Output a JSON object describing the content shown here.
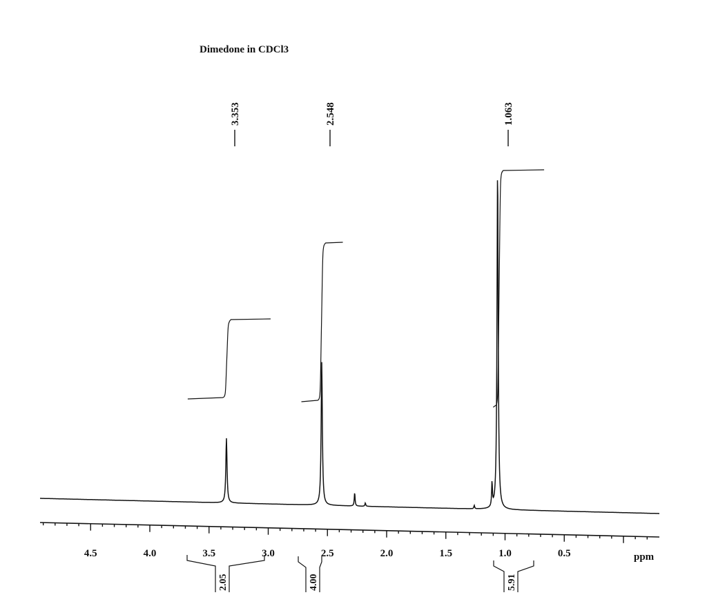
{
  "chart_data": {
    "type": "line",
    "title": "Dimedone in CDCl3",
    "xlabel": "ppm",
    "ylabel": "",
    "x_reversed": true,
    "xlim": [
      4.95,
      -0.3
    ],
    "x_ticks": [
      4.5,
      4.0,
      3.5,
      3.0,
      2.5,
      2.0,
      1.5,
      1.0,
      0.5
    ],
    "x_tick_labels": [
      "4.5",
      "4.0",
      "3.5",
      "3.0",
      "2.5",
      "2.0",
      "1.5",
      "1.0",
      "0.5"
    ],
    "grid": false,
    "legend": null,
    "peaks": [
      {
        "shift_ppm": 3.353,
        "label": "3.353",
        "relative_height": 0.19,
        "integral": "2.05",
        "integral_range_ppm": [
          3.68,
          2.98
        ]
      },
      {
        "shift_ppm": 2.548,
        "label": "2.548",
        "relative_height": 0.42,
        "integral": "4.00",
        "integral_range_ppm": [
          2.72,
          2.37
        ]
      },
      {
        "shift_ppm": 1.063,
        "label": "1.063",
        "relative_height": 1.0,
        "integral": "5.91",
        "integral_range_ppm": [
          1.1,
          0.67
        ]
      }
    ],
    "minor_peaks": [
      {
        "shift_ppm": 2.27,
        "relative_height": 0.04
      },
      {
        "shift_ppm": 2.18,
        "relative_height": 0.01
      },
      {
        "shift_ppm": 1.26,
        "relative_height": 0.01
      },
      {
        "shift_ppm": 1.11,
        "relative_height": 0.07
      }
    ],
    "integration_curves": [
      {
        "range_ppm": [
          3.68,
          2.98
        ],
        "step_at_ppm": 3.35,
        "start_level": 0.0,
        "end_level": 0.27
      },
      {
        "range_ppm": [
          2.72,
          2.37
        ],
        "step_at_ppm": 2.55,
        "start_level": 0.0,
        "end_level": 0.52
      },
      {
        "range_ppm": [
          1.1,
          0.67
        ],
        "step_at_ppm": 1.05,
        "start_level": 0.0,
        "end_level": 0.78
      }
    ]
  },
  "labels": {
    "title": "Dimedone in CDCl3",
    "unit": "ppm"
  }
}
